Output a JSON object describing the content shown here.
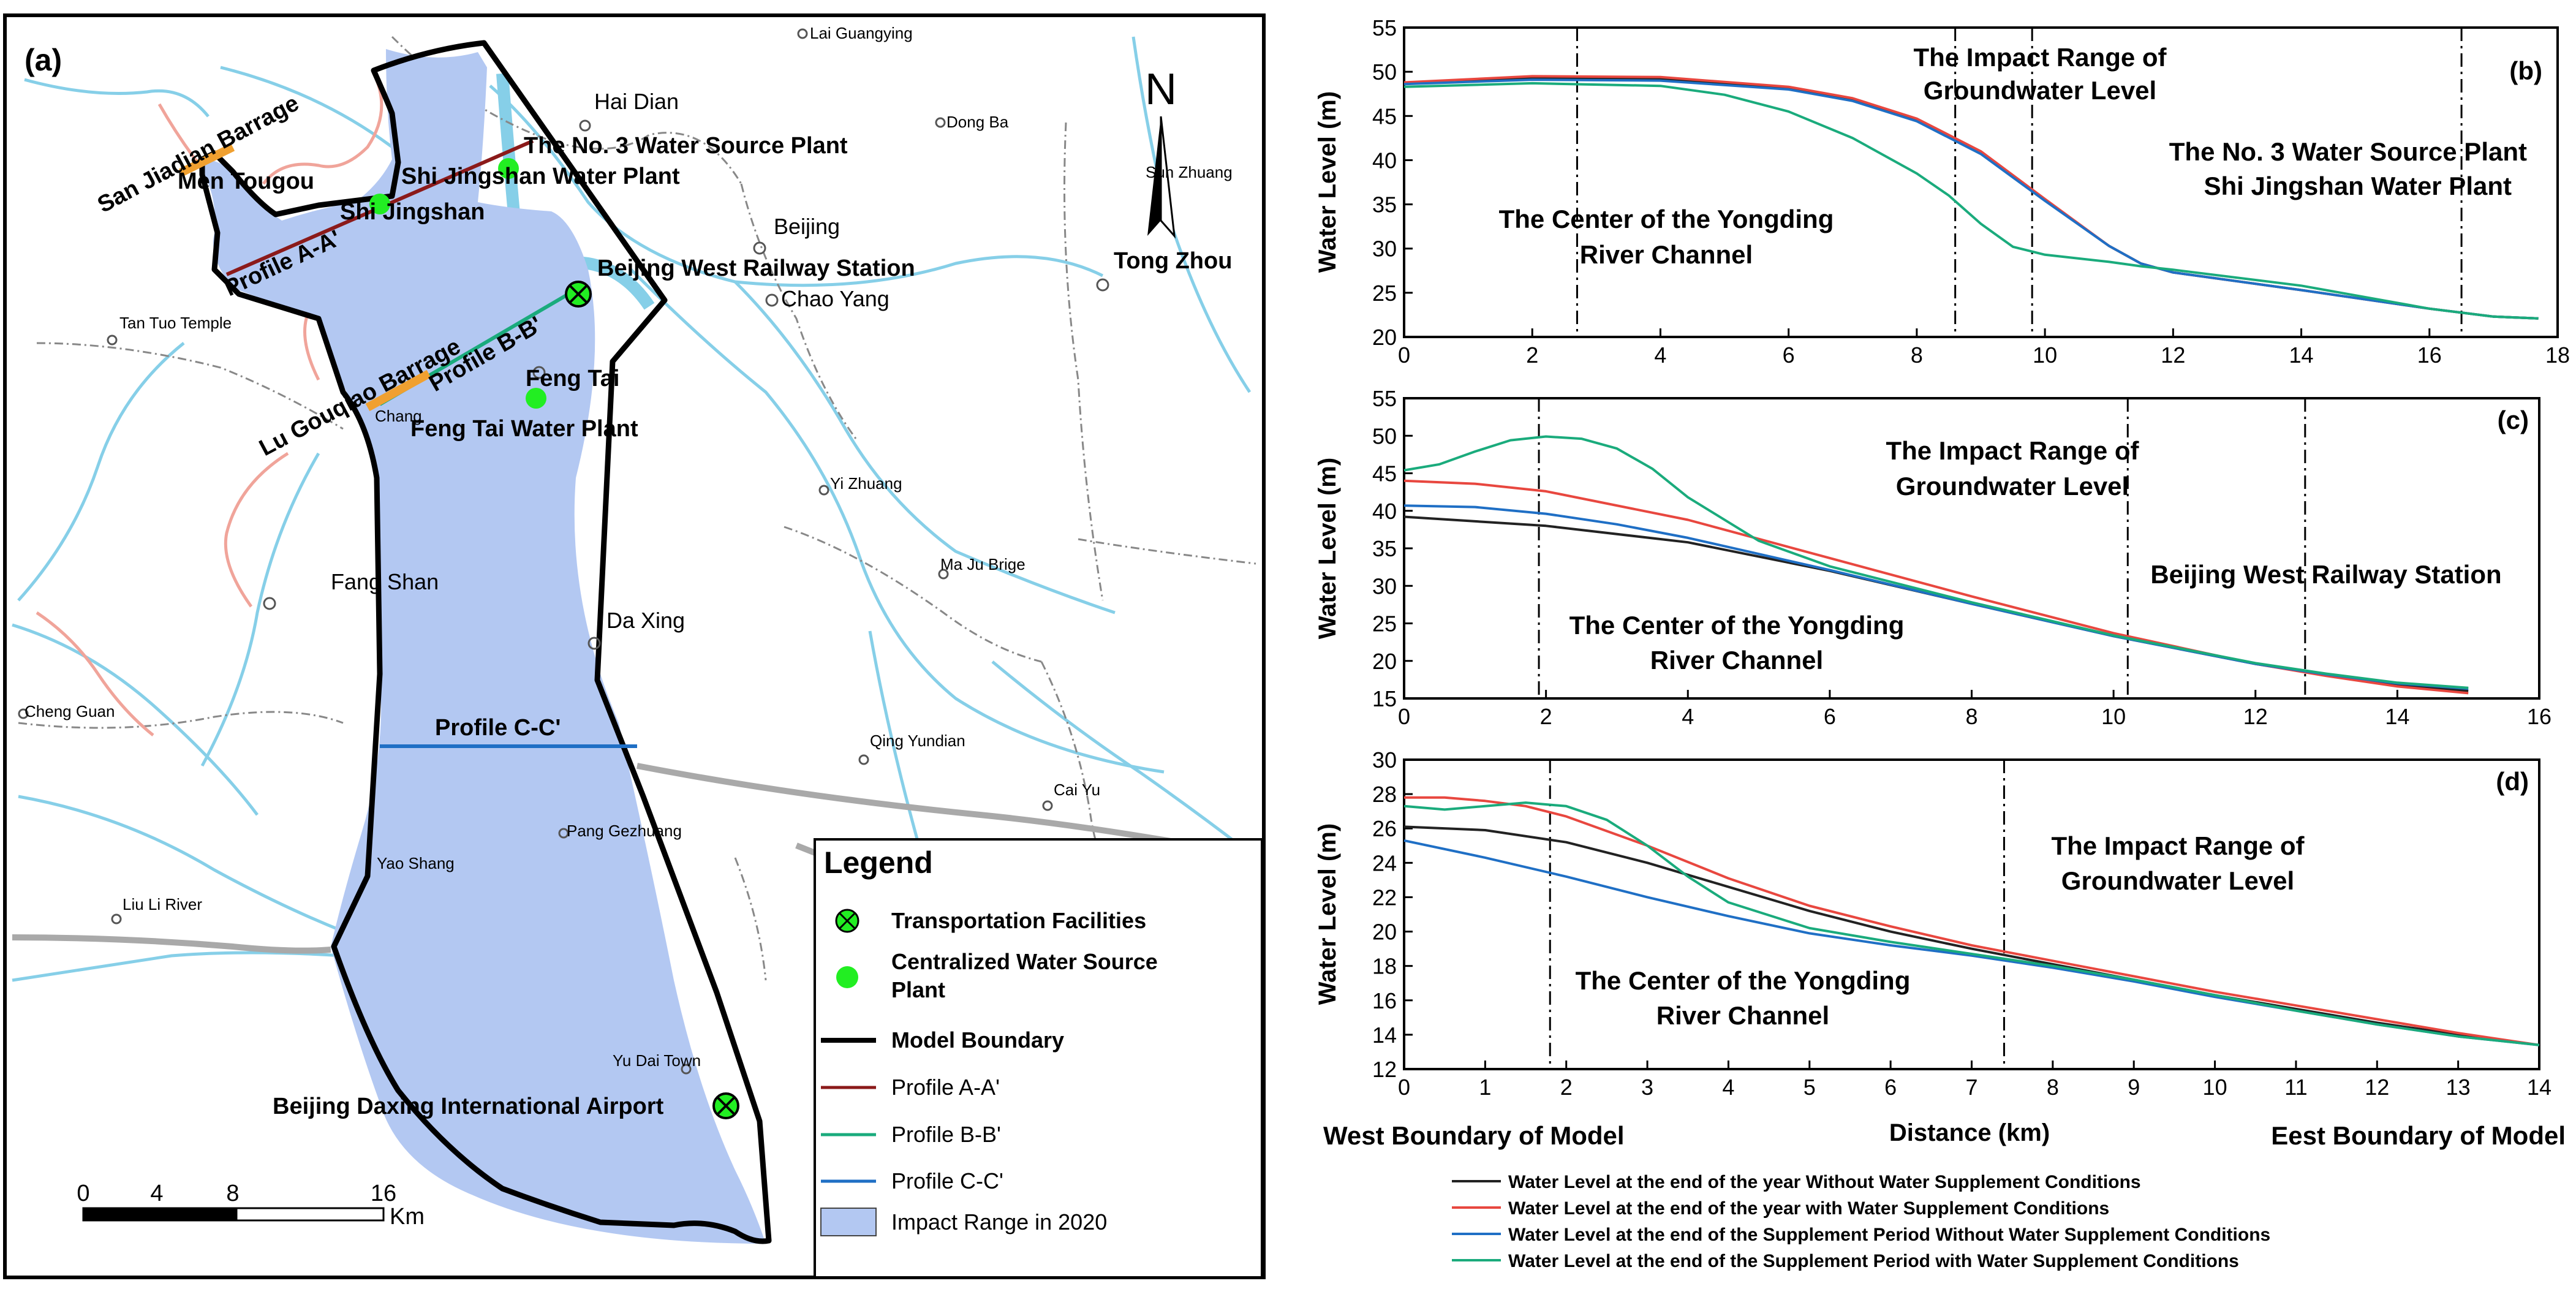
{
  "map": {
    "panel_label": "(a)",
    "north_label": "N",
    "places": {
      "lai_guangying": "Lai Guangying",
      "hai_dian": "Hai Dian",
      "dong_ba": "Dong Ba",
      "sun_zhuang": "Sun Zhuang",
      "beijing": "Beijing",
      "tong_zhou": "Tong Zhou",
      "chao_yang": "Chao Yang",
      "men_tougou": "Men Tougou",
      "shi_jingshan": "Shi Jingshan",
      "tan_tuo_temple": "Tan Tuo Temple",
      "feng_tai": "Feng Tai",
      "chang": "Chang",
      "yi_zhuang": "Yi Zhuang",
      "fang_shan": "Fang Shan",
      "ma_ju_brige": "Ma Ju Brige",
      "da_xing": "Da Xing",
      "cheng_guan": "Cheng Guan",
      "qing_yundian": "Qing Yundian",
      "cai_yu": "Cai Yu",
      "pang_gezhuang": "Pang Gezhuang",
      "yao_shang": "Yao Shang",
      "liu_li_river": "Liu Li River",
      "yu_dai_town": "Yu Dai Town"
    },
    "features": {
      "san_jiadian": "San Jiadian Barrage",
      "no3_plant": "The No. 3 Water Source Plant",
      "sjs_plant": "Shi Jingshan Water Plant",
      "bj_west": "Beijing West Railway Station",
      "lu_gouqiao": "Lu Gouqiao Barrage",
      "ft_plant": "Feng Tai Water Plant",
      "airport": "Beijing Daxing International Airport"
    },
    "profiles": {
      "a": "Profile A-A'",
      "b": "Profile B-B'",
      "c": "Profile C-C'"
    },
    "legend": {
      "title": "Legend",
      "transport": "Transportation Facilities",
      "plant_line1": "Centralized Water Source",
      "plant_line2": "Plant",
      "boundary": "Model Boundary",
      "profile_a": "Profile A-A'",
      "profile_b": "Profile B-B'",
      "profile_c": "Profile C-C'",
      "impact": "Impact Range in 2020"
    },
    "scale": {
      "ticks": [
        "0",
        "4",
        "8",
        "16"
      ],
      "unit": "Km"
    }
  },
  "charts": {
    "ylabel": "Water Level (m)",
    "xlabel": "Distance (km)",
    "west_boundary": "West Boundary of Model",
    "east_boundary": "Eest Boundary of Model",
    "b": {
      "label": "(b)",
      "ann_impact_1": "The Impact Range of",
      "ann_impact_2": "Groundwater Level",
      "ann_no3": "The No. 3 Water Source Plant",
      "ann_sjs": "Shi Jingshan Water Plant",
      "ann_center_1": "The Center of the Yongding",
      "ann_center_2": "River Channel"
    },
    "c": {
      "label": "(c)",
      "ann_impact_1": "The Impact Range of",
      "ann_impact_2": "Groundwater Level",
      "ann_bj_west": "Beijing West Railway Station",
      "ann_center_1": "The Center of the Yongding",
      "ann_center_2": "River Channel"
    },
    "d": {
      "label": "(d)",
      "ann_impact_1": "The Impact Range of",
      "ann_impact_2": "Groundwater Level",
      "ann_center_1": "The Center of the Yongding",
      "ann_center_2": "River Channel"
    },
    "legend": {
      "s1": "Water Level at the end of the year Without Water Supplement Conditions",
      "s2": "Water Level at the end of the year with Water Supplement Conditions",
      "s3": "Water Level at the end of the Supplement Period Without Water Supplement Conditions",
      "s4": "Water Level at the end of the Supplement Period with Water Supplement Conditions"
    }
  },
  "chart_data": [
    {
      "type": "line",
      "panel": "(b)",
      "xlabel": "Distance (km)",
      "ylabel": "Water Level (m)",
      "xlim": [
        0,
        18
      ],
      "ylim": [
        20,
        55
      ],
      "xticks": [
        0,
        2,
        4,
        6,
        8,
        10,
        12,
        14,
        16,
        18
      ],
      "yticks": [
        20,
        25,
        30,
        35,
        40,
        45,
        50,
        55
      ],
      "vlines": [
        2.7,
        8.6,
        9.8,
        16.5
      ],
      "series": [
        {
          "name": "Water Level at the end of the year Without Water Supplement Conditions",
          "color": "#222222",
          "x": [
            0,
            2,
            4,
            6,
            7,
            8,
            9,
            10,
            11,
            11.5,
            12,
            14,
            16,
            17,
            17.7
          ],
          "y": [
            48.7,
            49.3,
            49.2,
            48.1,
            46.8,
            44.5,
            40.8,
            35.5,
            30.3,
            28.3,
            27.3,
            25.3,
            23.2,
            22.3,
            22.1
          ]
        },
        {
          "name": "Water Level at the end of the year with Water Supplement Conditions",
          "color": "#e8473f",
          "x": [
            0,
            2,
            4,
            6,
            7,
            8,
            9,
            10,
            11,
            11.5,
            12,
            14,
            16,
            17,
            17.7
          ],
          "y": [
            48.8,
            49.5,
            49.4,
            48.3,
            47.0,
            44.7,
            41.0,
            35.6,
            30.3,
            28.3,
            27.3,
            25.3,
            23.2,
            22.3,
            22.1
          ]
        },
        {
          "name": "Water Level at the end of the Supplement Period Without Water Supplement Conditions",
          "color": "#1f6fc5",
          "x": [
            0,
            2,
            4,
            6,
            7,
            8,
            9,
            10,
            11,
            11.5,
            12,
            14,
            16,
            17,
            17.7
          ],
          "y": [
            48.6,
            49.1,
            49.0,
            48.0,
            46.7,
            44.4,
            40.7,
            35.4,
            30.3,
            28.3,
            27.3,
            25.3,
            23.2,
            22.3,
            22.1
          ]
        },
        {
          "name": "Water Level at the end of the Supplement Period with Water Supplement Conditions",
          "color": "#1aab7c",
          "x": [
            0,
            2,
            4,
            5,
            6,
            7,
            8,
            8.5,
            9,
            9.5,
            10,
            11,
            11.5,
            12,
            14,
            16,
            17,
            17.7
          ],
          "y": [
            48.3,
            48.7,
            48.4,
            47.4,
            45.5,
            42.5,
            38.5,
            36.0,
            32.8,
            30.2,
            29.3,
            28.5,
            28.0,
            27.6,
            25.8,
            23.2,
            22.3,
            22.1
          ]
        }
      ]
    },
    {
      "type": "line",
      "panel": "(c)",
      "xlabel": "Distance (km)",
      "ylabel": "Water Level (m)",
      "xlim": [
        0,
        16
      ],
      "ylim": [
        15,
        55
      ],
      "xticks": [
        0,
        2,
        4,
        6,
        8,
        10,
        12,
        14,
        16
      ],
      "yticks": [
        15,
        20,
        25,
        30,
        35,
        40,
        45,
        50,
        55
      ],
      "vlines": [
        1.9,
        10.2,
        12.7
      ],
      "series": [
        {
          "name": "Water Level at the end of the year Without Water Supplement Conditions",
          "color": "#222222",
          "x": [
            0,
            2,
            4,
            6,
            8,
            10,
            12,
            13,
            14,
            15
          ],
          "y": [
            39.2,
            38.0,
            35.8,
            32.0,
            27.6,
            23.3,
            19.6,
            18.1,
            16.9,
            16.0
          ]
        },
        {
          "name": "Water Level at the end of the year with Water Supplement Conditions",
          "color": "#e8473f",
          "x": [
            0,
            1,
            2,
            4,
            6,
            8,
            10,
            12,
            13,
            14,
            15
          ],
          "y": [
            44.0,
            43.6,
            42.6,
            38.8,
            33.7,
            28.6,
            23.7,
            19.6,
            18.0,
            16.6,
            15.7
          ]
        },
        {
          "name": "Water Level at the end of the Supplement Period Without Water Supplement Conditions",
          "color": "#1f6fc5",
          "x": [
            0,
            1,
            2,
            3,
            4,
            6,
            8,
            10,
            12,
            13,
            14,
            15
          ],
          "y": [
            40.7,
            40.5,
            39.6,
            38.2,
            36.4,
            32.1,
            27.6,
            23.3,
            19.6,
            18.2,
            17.0,
            16.3
          ]
        },
        {
          "name": "Water Level at the end of the Supplement Period with Water Supplement Conditions",
          "color": "#1aab7c",
          "x": [
            0,
            0.5,
            1,
            1.5,
            2,
            2.5,
            3,
            3.5,
            4,
            5,
            6,
            8,
            10,
            12,
            13,
            14,
            15
          ],
          "y": [
            45.4,
            46.2,
            47.9,
            49.4,
            49.9,
            49.6,
            48.3,
            45.6,
            41.8,
            36.0,
            32.6,
            27.8,
            23.4,
            19.7,
            18.3,
            17.1,
            16.4
          ]
        }
      ]
    },
    {
      "type": "line",
      "panel": "(d)",
      "xlabel": "Distance (km)",
      "ylabel": "Water Level (m)",
      "xlim": [
        0,
        14
      ],
      "ylim": [
        12,
        30
      ],
      "xticks": [
        0,
        1,
        2,
        3,
        4,
        5,
        6,
        7,
        8,
        9,
        10,
        11,
        12,
        13,
        14
      ],
      "yticks": [
        12,
        14,
        16,
        18,
        20,
        22,
        24,
        26,
        28,
        30
      ],
      "vlines": [
        1.8,
        7.4
      ],
      "series": [
        {
          "name": "Water Level at the end of the year Without Water Supplement Conditions",
          "color": "#222222",
          "x": [
            0,
            1,
            2,
            3,
            4,
            5,
            6,
            7,
            8,
            9,
            10,
            11,
            12,
            13,
            14
          ],
          "y": [
            26.1,
            25.9,
            25.2,
            24.0,
            22.6,
            21.2,
            20.0,
            19.0,
            18.1,
            17.2,
            16.3,
            15.5,
            14.7,
            14.0,
            13.4
          ]
        },
        {
          "name": "Water Level at the end of the year with Water Supplement Conditions",
          "color": "#e8473f",
          "x": [
            0,
            0.5,
            1,
            1.5,
            2,
            3,
            4,
            5,
            6,
            7,
            8,
            9,
            10,
            11,
            12,
            13,
            14
          ],
          "y": [
            27.8,
            27.8,
            27.6,
            27.3,
            26.7,
            25.0,
            23.1,
            21.5,
            20.3,
            19.2,
            18.3,
            17.4,
            16.5,
            15.7,
            14.9,
            14.1,
            13.4
          ]
        },
        {
          "name": "Water Level at the end of the Supplement Period Without Water Supplement Conditions",
          "color": "#1f6fc5",
          "x": [
            0,
            1,
            2,
            3,
            4,
            5,
            6,
            7,
            8,
            9,
            10,
            11,
            12,
            13,
            14
          ],
          "y": [
            25.3,
            24.3,
            23.2,
            22.0,
            20.9,
            19.9,
            19.2,
            18.6,
            17.9,
            17.1,
            16.2,
            15.4,
            14.6,
            13.9,
            13.4
          ]
        },
        {
          "name": "Water Level at the end of the Supplement Period with Water Supplement Conditions",
          "color": "#1aab7c",
          "x": [
            0,
            0.5,
            1,
            1.5,
            2,
            2.5,
            3,
            3.5,
            4,
            5,
            6,
            7,
            8,
            9,
            10,
            11,
            12,
            13,
            14
          ],
          "y": [
            27.3,
            27.1,
            27.3,
            27.5,
            27.3,
            26.5,
            25.0,
            23.2,
            21.7,
            20.2,
            19.4,
            18.7,
            18.0,
            17.2,
            16.3,
            15.4,
            14.6,
            13.9,
            13.4
          ]
        }
      ]
    }
  ]
}
